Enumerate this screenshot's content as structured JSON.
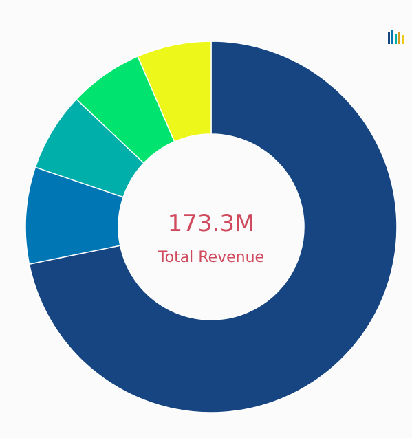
{
  "chart_data": {
    "type": "pie",
    "center_value": "173.3M",
    "center_label": "Total Revenue",
    "slices": [
      {
        "value": 124.4,
        "color": "#164581"
      },
      {
        "value": 14.6,
        "color": "#0076B5"
      },
      {
        "value": 11.9,
        "color": "#00AFAA"
      },
      {
        "value": 11.2,
        "color": "#00E36F"
      },
      {
        "value": 11.2,
        "color": "#EDF81A"
      }
    ],
    "colors": {
      "accent_text": "#D04A5E",
      "background": "#FBFBFB"
    }
  },
  "toolbar": {
    "logo_icon": "bars-logo-icon"
  }
}
